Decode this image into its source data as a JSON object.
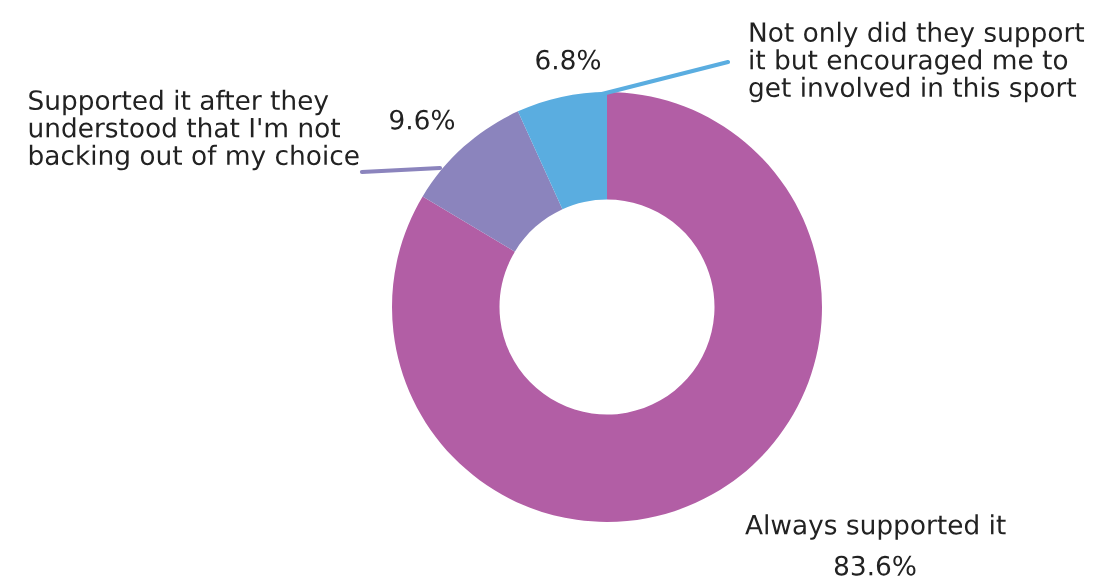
{
  "chart_data": {
    "type": "donut",
    "categories": [
      "Always supported it",
      "Supported it after they\nunderstood that I'm not\nbacking out of my choice",
      "Not only did they support\nit but encouraged me to\nget involved in this sport"
    ],
    "values": [
      83.6,
      9.6,
      6.8
    ],
    "colors": [
      "#b25ea5",
      "#8b84bd",
      "#5aade0"
    ],
    "value_labels": [
      "83.6%",
      "9.6%",
      "6.8%"
    ],
    "legend": false
  }
}
